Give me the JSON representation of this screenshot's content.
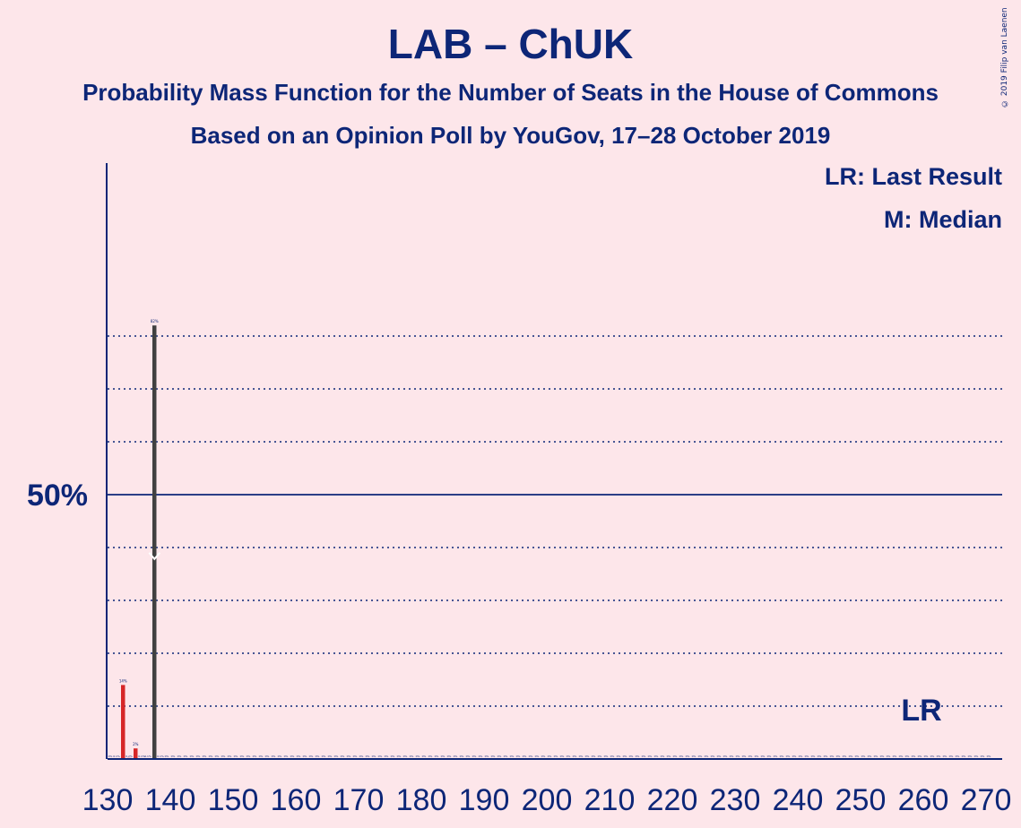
{
  "title": "LAB – ChUK",
  "subtitle_1": "Probability Mass Function for the Number of Seats in the House of Commons",
  "subtitle_2": "Based on an Opinion Poll by YouGov, 17–28 October 2019",
  "copyright": "© 2019 Filip van Laenen",
  "legend": {
    "last_result": "LR: Last Result",
    "median": "M: Median"
  },
  "colors": {
    "accent": "#0d2677",
    "background": "#fde6ea",
    "bar_red": "#d62728",
    "bar_dark": "#404040"
  },
  "chart_data": {
    "type": "bar",
    "x_start": 130,
    "x_end": 270,
    "xticks": [
      130,
      140,
      150,
      160,
      170,
      180,
      190,
      200,
      210,
      220,
      230,
      240,
      250,
      260,
      270
    ],
    "ylim": [
      0,
      90
    ],
    "ytick_label": "50%",
    "ytick_value": 50,
    "dotted_gridlines": [
      10,
      20,
      30,
      40,
      60,
      70,
      80
    ],
    "bars": [
      {
        "x": 131,
        "value": 0.1,
        "label": "0.1%",
        "color": "red"
      },
      {
        "x": 132,
        "value": 14,
        "label": "14%",
        "color": "red"
      },
      {
        "x": 133,
        "value": 0.2,
        "label": "0.2%",
        "color": "red"
      },
      {
        "x": 134,
        "value": 2,
        "label": "2%",
        "color": "red"
      },
      {
        "x": 135,
        "value": 0.1,
        "label": "0.1%",
        "color": "red"
      },
      {
        "x": 136,
        "value": 0.1,
        "label": "0.1%",
        "color": "red"
      },
      {
        "x": 137,
        "value": 82,
        "label": "82%",
        "color": "dark"
      },
      {
        "x": 138,
        "value": 0.1,
        "label": "0.1%",
        "color": "dark"
      },
      {
        "x": 139,
        "value": 0,
        "label": "0%",
        "color": "dark"
      }
    ],
    "zero_label": "0%",
    "median_seat": 137,
    "last_result_label": "LR",
    "last_result_seat": 262,
    "last_result_value": 10
  }
}
